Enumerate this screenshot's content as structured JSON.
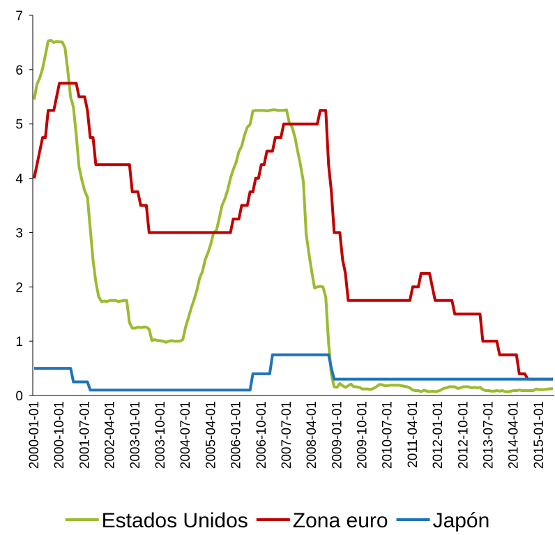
{
  "chart_data": {
    "type": "line",
    "categories": [
      "2000-01-01",
      null,
      null,
      null,
      null,
      null,
      null,
      null,
      null,
      "2000-10-01",
      null,
      null,
      null,
      null,
      null,
      null,
      null,
      null,
      "2001-07-01",
      null,
      null,
      null,
      null,
      null,
      null,
      null,
      null,
      "2002-04-01",
      null,
      null,
      null,
      null,
      null,
      null,
      null,
      null,
      "2003-01-01",
      null,
      null,
      null,
      null,
      null,
      null,
      null,
      null,
      "2003-10-01",
      null,
      null,
      null,
      null,
      null,
      null,
      null,
      null,
      "2004-07-01",
      null,
      null,
      null,
      null,
      null,
      null,
      null,
      null,
      "2005-04-01",
      null,
      null,
      null,
      null,
      null,
      null,
      null,
      null,
      "2006-01-01",
      null,
      null,
      null,
      null,
      null,
      null,
      null,
      null,
      "2006-10-01",
      null,
      null,
      null,
      null,
      null,
      null,
      null,
      null,
      "2007-07-01",
      null,
      null,
      null,
      null,
      null,
      null,
      null,
      null,
      "2008-04-01",
      null,
      null,
      null,
      null,
      null,
      null,
      null,
      null,
      "2009-01-01",
      null,
      null,
      null,
      null,
      null,
      null,
      null,
      null,
      "2009-10-01",
      null,
      null,
      null,
      null,
      null,
      null,
      null,
      null,
      "2010-07-01",
      null,
      null,
      null,
      null,
      null,
      null,
      null,
      null,
      "2011-04-01",
      null,
      null,
      null,
      null,
      null,
      null,
      null,
      null,
      "2012-01-01",
      null,
      null,
      null,
      null,
      null,
      null,
      null,
      null,
      "2012-10-01",
      null,
      null,
      null,
      null,
      null,
      null,
      null,
      null,
      "2013-07-01",
      null,
      null,
      null,
      null,
      null,
      null,
      null,
      null,
      "2014-04-01",
      null,
      null,
      null,
      null,
      null,
      null,
      null,
      null,
      "2015-01-01",
      null,
      null,
      null,
      null,
      null
    ],
    "series": [
      {
        "name": "Estados Unidos",
        "color": "#9bbb30",
        "values": [
          5.45,
          5.73,
          5.85,
          6.02,
          6.27,
          6.53,
          6.54,
          6.5,
          6.52,
          6.51,
          6.51,
          6.4,
          5.98,
          5.49,
          5.31,
          4.8,
          4.21,
          3.97,
          3.77,
          3.65,
          3.07,
          2.49,
          2.09,
          1.82,
          1.73,
          1.74,
          1.73,
          1.75,
          1.75,
          1.75,
          1.73,
          1.74,
          1.75,
          1.75,
          1.34,
          1.24,
          1.24,
          1.26,
          1.25,
          1.26,
          1.26,
          1.22,
          1.01,
          1.03,
          1.01,
          1.01,
          1.0,
          0.98,
          1.0,
          1.01,
          1.0,
          1.0,
          1.0,
          1.03,
          1.26,
          1.43,
          1.61,
          1.76,
          1.93,
          2.16,
          2.28,
          2.5,
          2.63,
          2.79,
          3.0,
          3.04,
          3.26,
          3.5,
          3.62,
          3.78,
          4.0,
          4.16,
          4.29,
          4.49,
          4.59,
          4.79,
          4.94,
          4.99,
          5.24,
          5.25,
          5.25,
          5.25,
          5.25,
          5.24,
          5.25,
          5.26,
          5.26,
          5.25,
          5.25,
          5.25,
          5.26,
          5.02,
          4.94,
          4.76,
          4.49,
          4.24,
          3.94,
          2.98,
          2.61,
          2.28,
          1.98,
          2.0,
          2.01,
          2.0,
          1.81,
          0.97,
          0.39,
          0.16,
          0.15,
          0.22,
          0.18,
          0.15,
          0.18,
          0.21,
          0.16,
          0.16,
          0.15,
          0.12,
          0.12,
          0.12,
          0.11,
          0.13,
          0.16,
          0.2,
          0.2,
          0.18,
          0.18,
          0.19,
          0.19,
          0.19,
          0.19,
          0.18,
          0.17,
          0.16,
          0.14,
          0.1,
          0.09,
          0.09,
          0.07,
          0.1,
          0.08,
          0.07,
          0.08,
          0.07,
          0.08,
          0.1,
          0.13,
          0.14,
          0.16,
          0.16,
          0.16,
          0.13,
          0.14,
          0.16,
          0.16,
          0.16,
          0.14,
          0.15,
          0.14,
          0.15,
          0.11,
          0.09,
          0.09,
          0.08,
          0.08,
          0.09,
          0.08,
          0.09,
          0.07,
          0.07,
          0.08,
          0.09,
          0.09,
          0.1,
          0.09,
          0.09,
          0.09,
          0.09,
          0.09,
          0.12,
          0.11,
          0.11,
          0.11,
          0.12,
          0.12,
          0.13
        ]
      },
      {
        "name": "Zona euro",
        "color": "#c00000",
        "values": [
          4,
          4.25,
          4.5,
          4.75,
          4.75,
          5.25,
          5.25,
          5.25,
          5.5,
          5.75,
          5.75,
          5.75,
          5.75,
          5.75,
          5.75,
          5.75,
          5.5,
          5.5,
          5.5,
          5.25,
          4.75,
          4.75,
          4.25,
          4.25,
          4.25,
          4.25,
          4.25,
          4.25,
          4.25,
          4.25,
          4.25,
          4.25,
          4.25,
          4.25,
          4.25,
          3.75,
          3.75,
          3.75,
          3.5,
          3.5,
          3.5,
          3,
          3,
          3,
          3,
          3,
          3,
          3,
          3,
          3,
          3,
          3,
          3,
          3,
          3,
          3,
          3,
          3,
          3,
          3,
          3,
          3,
          3,
          3,
          3,
          3,
          3,
          3,
          3,
          3,
          3,
          3.25,
          3.25,
          3.25,
          3.5,
          3.5,
          3.5,
          3.75,
          3.75,
          4,
          4,
          4.25,
          4.25,
          4.5,
          4.5,
          4.5,
          4.75,
          4.75,
          4.75,
          5,
          5,
          5,
          5,
          5,
          5,
          5,
          5,
          5,
          5,
          5,
          5,
          5,
          5.25,
          5.25,
          5.25,
          4.25,
          3.75,
          3,
          3,
          3,
          2.5,
          2.25,
          1.75,
          1.75,
          1.75,
          1.75,
          1.75,
          1.75,
          1.75,
          1.75,
          1.75,
          1.75,
          1.75,
          1.75,
          1.75,
          1.75,
          1.75,
          1.75,
          1.75,
          1.75,
          1.75,
          1.75,
          1.75,
          1.75,
          1.75,
          2,
          2,
          2,
          2.25,
          2.25,
          2.25,
          2.25,
          2,
          1.75,
          1.75,
          1.75,
          1.75,
          1.75,
          1.75,
          1.75,
          1.5,
          1.5,
          1.5,
          1.5,
          1.5,
          1.5,
          1.5,
          1.5,
          1.5,
          1.5,
          1,
          1,
          1,
          1,
          1,
          1,
          0.75,
          0.75,
          0.75,
          0.75,
          0.75,
          0.75,
          0.75,
          0.4,
          0.4,
          0.4,
          0.3,
          0.3,
          0.3,
          0.3,
          0.3,
          0.3,
          0.3,
          0.3,
          0.3,
          0.3
        ]
      },
      {
        "name": "Japón",
        "color": "#1f74b9",
        "values": [
          0.5,
          0.5,
          0.5,
          0.5,
          0.5,
          0.5,
          0.5,
          0.5,
          0.5,
          0.5,
          0.5,
          0.5,
          0.5,
          0.5,
          0.25,
          0.25,
          0.25,
          0.25,
          0.25,
          0.25,
          0.1,
          0.1,
          0.1,
          0.1,
          0.1,
          0.1,
          0.1,
          0.1,
          0.1,
          0.1,
          0.1,
          0.1,
          0.1,
          0.1,
          0.1,
          0.1,
          0.1,
          0.1,
          0.1,
          0.1,
          0.1,
          0.1,
          0.1,
          0.1,
          0.1,
          0.1,
          0.1,
          0.1,
          0.1,
          0.1,
          0.1,
          0.1,
          0.1,
          0.1,
          0.1,
          0.1,
          0.1,
          0.1,
          0.1,
          0.1,
          0.1,
          0.1,
          0.1,
          0.1,
          0.1,
          0.1,
          0.1,
          0.1,
          0.1,
          0.1,
          0.1,
          0.1,
          0.1,
          0.1,
          0.1,
          0.1,
          0.1,
          0.1,
          0.4,
          0.4,
          0.4,
          0.4,
          0.4,
          0.4,
          0.4,
          0.75,
          0.75,
          0.75,
          0.75,
          0.75,
          0.75,
          0.75,
          0.75,
          0.75,
          0.75,
          0.75,
          0.75,
          0.75,
          0.75,
          0.75,
          0.75,
          0.75,
          0.75,
          0.75,
          0.75,
          0.75,
          0.5,
          0.3,
          0.3,
          0.3,
          0.3,
          0.3,
          0.3,
          0.3,
          0.3,
          0.3,
          0.3,
          0.3,
          0.3,
          0.3,
          0.3,
          0.3,
          0.3,
          0.3,
          0.3,
          0.3,
          0.3,
          0.3,
          0.3,
          0.3,
          0.3,
          0.3,
          0.3,
          0.3,
          0.3,
          0.3,
          0.3,
          0.3,
          0.3,
          0.3,
          0.3,
          0.3,
          0.3,
          0.3,
          0.3,
          0.3,
          0.3,
          0.3,
          0.3,
          0.3,
          0.3,
          0.3,
          0.3,
          0.3,
          0.3,
          0.3,
          0.3,
          0.3,
          0.3,
          0.3,
          0.3,
          0.3,
          0.3,
          0.3,
          0.3,
          0.3,
          0.3,
          0.3,
          0.3,
          0.3,
          0.3,
          0.3,
          0.3,
          0.3,
          0.3,
          0.3,
          0.3,
          0.3,
          0.3,
          0.3,
          0.3,
          0.3,
          0.3,
          0.3,
          0.3,
          0.3
        ]
      }
    ],
    "ylim": [
      0,
      7
    ],
    "yticks": [
      0,
      1,
      2,
      3,
      4,
      5,
      6,
      7
    ],
    "grid": false,
    "legend": "bottom"
  }
}
